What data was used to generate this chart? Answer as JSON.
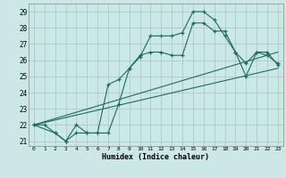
{
  "xlabel": "Humidex (Indice chaleur)",
  "bg_color": "#cce8e6",
  "grid_color": "#aaccca",
  "line_color": "#1a6b63",
  "xlim": [
    -0.5,
    23.5
  ],
  "ylim": [
    20.7,
    29.5
  ],
  "yticks": [
    21,
    22,
    23,
    24,
    25,
    26,
    27,
    28,
    29
  ],
  "xticks": [
    0,
    1,
    2,
    3,
    4,
    5,
    6,
    7,
    8,
    9,
    10,
    11,
    12,
    13,
    14,
    15,
    16,
    17,
    18,
    19,
    20,
    21,
    22,
    23
  ],
  "series1_x": [
    0,
    1,
    2,
    3,
    4,
    5,
    6,
    7,
    8,
    9,
    10,
    11,
    12,
    13,
    14,
    15,
    16,
    17,
    18,
    19,
    20,
    21,
    22,
    23
  ],
  "series1_y": [
    22.0,
    22.0,
    21.5,
    21.0,
    21.5,
    21.5,
    21.5,
    21.5,
    23.3,
    25.5,
    26.2,
    27.5,
    27.5,
    27.5,
    27.7,
    29.0,
    29.0,
    28.5,
    27.5,
    26.5,
    25.0,
    26.5,
    26.5,
    25.7
  ],
  "series2_x": [
    0,
    2,
    3,
    4,
    5,
    6,
    7,
    8,
    9,
    10,
    11,
    12,
    13,
    14,
    15,
    16,
    17,
    18,
    19,
    20,
    21,
    22,
    23
  ],
  "series2_y": [
    22.0,
    21.5,
    21.0,
    22.0,
    21.5,
    21.5,
    24.5,
    24.8,
    25.5,
    26.3,
    26.5,
    26.5,
    26.3,
    26.3,
    28.3,
    28.3,
    27.8,
    27.8,
    26.5,
    25.8,
    26.5,
    26.3,
    25.8
  ],
  "series3_x": [
    0,
    23
  ],
  "series3_y": [
    22.0,
    25.5
  ],
  "series4_x": [
    0,
    23
  ],
  "series4_y": [
    22.0,
    26.5
  ]
}
